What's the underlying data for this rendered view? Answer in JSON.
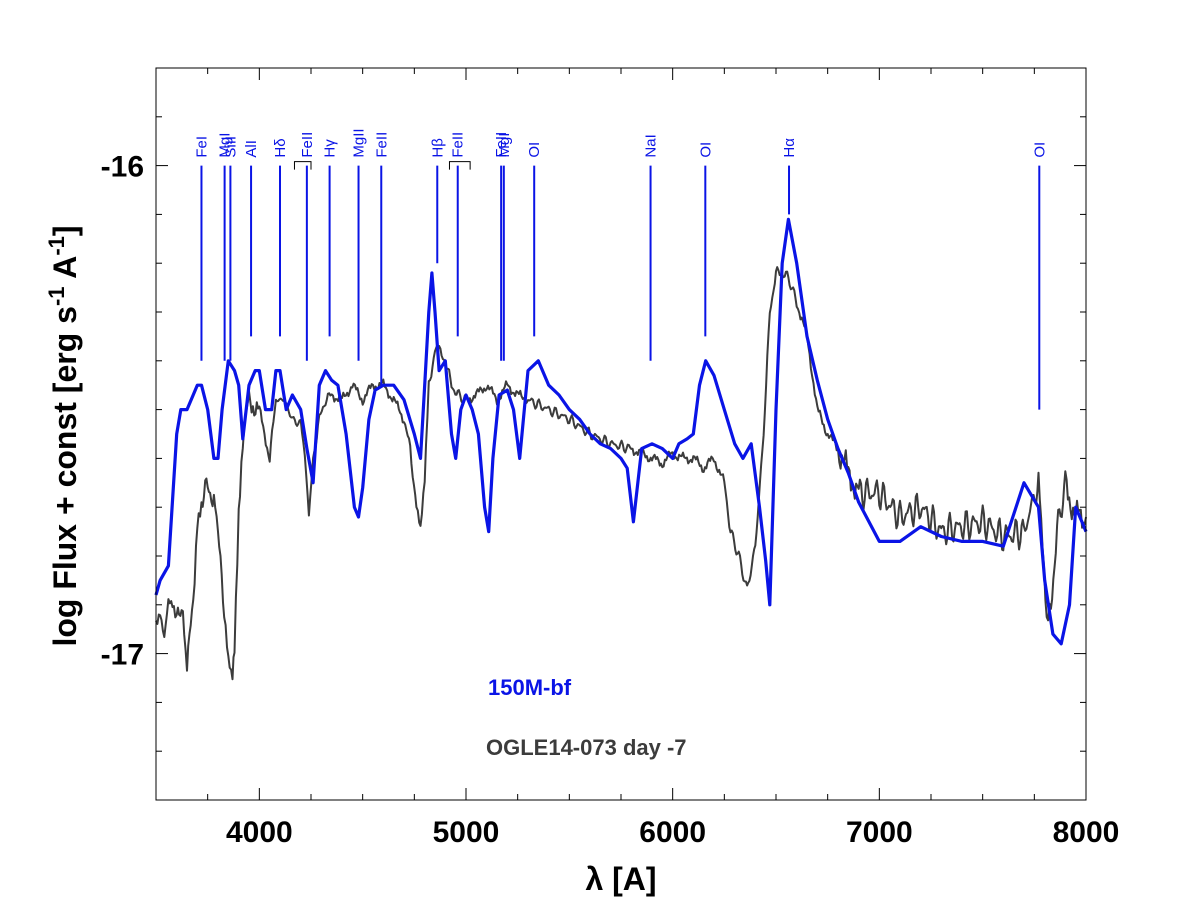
{
  "chart_data": {
    "type": "line",
    "title": "",
    "xlabel": "λ [A]",
    "ylabel_main": "log Flux + const [erg s",
    "ylabel_sup1": "-1",
    "ylabel_mid": " A",
    "ylabel_sup2": "-1",
    "ylabel_end": "]",
    "xlim": [
      3500,
      8000
    ],
    "ylim": [
      -17.3,
      -15.8
    ],
    "xticks": [
      4000,
      5000,
      6000,
      7000,
      8000
    ],
    "xtick_labels": [
      "4000",
      "5000",
      "6000",
      "7000",
      "8000"
    ],
    "yticks": [
      -16,
      -17
    ],
    "ytick_labels": [
      "-16",
      "-17"
    ],
    "colors": {
      "model": "#0a14e6",
      "observed": "#3c3c3c",
      "ids": "#0a14e6"
    },
    "legend": [
      {
        "name": "150M-bf",
        "color": "#0a14e6"
      },
      {
        "name": "OGLE14-073 day -7",
        "color": "#3c3c3c"
      }
    ],
    "line_ids": [
      {
        "label": "FeI",
        "x": 3720,
        "top": -16.0,
        "bottom": -16.4
      },
      {
        "label": "MgI",
        "x": 3832,
        "top": -16.0,
        "bottom": -16.4
      },
      {
        "label": "SiII",
        "x": 3860,
        "top": -16.0,
        "bottom": -16.4
      },
      {
        "label": "AlI",
        "x": 3960,
        "top": -16.0,
        "bottom": -16.35
      },
      {
        "label": "Hδ",
        "x": 4100,
        "top": -16.0,
        "bottom": -16.35
      },
      {
        "label": "FeII",
        "x": 4230,
        "top": -16.0,
        "bottom": -16.4,
        "bracket": [
          4170,
          4250
        ]
      },
      {
        "label": "Hγ",
        "x": 4340,
        "top": -16.0,
        "bottom": -16.35
      },
      {
        "label": "MgII",
        "x": 4480,
        "top": -16.0,
        "bottom": -16.4
      },
      {
        "label": "FeII",
        "x": 4590,
        "top": -16.0,
        "bottom": -16.45
      },
      {
        "label": "Hβ",
        "x": 4861,
        "top": -16.0,
        "bottom": -16.2
      },
      {
        "label": "FeII",
        "x": 4960,
        "top": -16.0,
        "bottom": -16.35,
        "bracket": [
          4920,
          5020
        ]
      },
      {
        "label": "FeII",
        "x": 5170,
        "top": -16.0,
        "bottom": -16.4
      },
      {
        "label": "MgI",
        "x": 5183,
        "top": -16.0,
        "bottom": -16.4
      },
      {
        "label": "OI",
        "x": 5330,
        "top": -16.0,
        "bottom": -16.35
      },
      {
        "label": "NaI",
        "x": 5893,
        "top": -16.0,
        "bottom": -16.4
      },
      {
        "label": "OI",
        "x": 6158,
        "top": -16.0,
        "bottom": -16.35
      },
      {
        "label": "Hα",
        "x": 6563,
        "top": -16.0,
        "bottom": -16.1
      },
      {
        "label": "OI",
        "x": 7774,
        "top": -16.0,
        "bottom": -16.5
      }
    ],
    "series": [
      {
        "name": "150M-bf",
        "x": [
          3500,
          3520,
          3560,
          3600,
          3620,
          3650,
          3680,
          3700,
          3720,
          3750,
          3780,
          3800,
          3820,
          3850,
          3880,
          3900,
          3920,
          3950,
          3980,
          4000,
          4030,
          4060,
          4080,
          4100,
          4130,
          4160,
          4200,
          4230,
          4260,
          4290,
          4320,
          4350,
          4380,
          4420,
          4460,
          4480,
          4500,
          4530,
          4560,
          4600,
          4650,
          4700,
          4750,
          4780,
          4800,
          4820,
          4835,
          4850,
          4870,
          4900,
          4930,
          4950,
          4975,
          5000,
          5030,
          5060,
          5090,
          5110,
          5130,
          5160,
          5200,
          5230,
          5260,
          5300,
          5350,
          5400,
          5450,
          5500,
          5550,
          5600,
          5650,
          5700,
          5750,
          5780,
          5810,
          5850,
          5900,
          5950,
          6000,
          6030,
          6070,
          6100,
          6130,
          6160,
          6200,
          6250,
          6300,
          6340,
          6380,
          6420,
          6450,
          6470,
          6500,
          6530,
          6560,
          6600,
          6650,
          6700,
          6750,
          6800,
          6850,
          6900,
          7000,
          7100,
          7200,
          7300,
          7400,
          7500,
          7600,
          7700,
          7770,
          7800,
          7840,
          7880,
          7920,
          7950,
          7980,
          8000
        ],
        "values": [
          -16.88,
          -16.85,
          -16.82,
          -16.55,
          -16.5,
          -16.5,
          -16.47,
          -16.45,
          -16.45,
          -16.5,
          -16.6,
          -16.6,
          -16.5,
          -16.4,
          -16.42,
          -16.45,
          -16.56,
          -16.45,
          -16.42,
          -16.42,
          -16.5,
          -16.5,
          -16.42,
          -16.42,
          -16.5,
          -16.47,
          -16.5,
          -16.58,
          -16.65,
          -16.45,
          -16.42,
          -16.44,
          -16.45,
          -16.55,
          -16.7,
          -16.72,
          -16.66,
          -16.52,
          -16.46,
          -16.45,
          -16.45,
          -16.48,
          -16.55,
          -16.6,
          -16.45,
          -16.3,
          -16.22,
          -16.3,
          -16.42,
          -16.4,
          -16.55,
          -16.6,
          -16.5,
          -16.47,
          -16.5,
          -16.55,
          -16.7,
          -16.75,
          -16.6,
          -16.47,
          -16.46,
          -16.5,
          -16.6,
          -16.42,
          -16.4,
          -16.45,
          -16.47,
          -16.5,
          -16.52,
          -16.55,
          -16.57,
          -16.58,
          -16.6,
          -16.62,
          -16.73,
          -16.58,
          -16.57,
          -16.58,
          -16.6,
          -16.57,
          -16.56,
          -16.55,
          -16.45,
          -16.4,
          -16.43,
          -16.5,
          -16.57,
          -16.6,
          -16.57,
          -16.7,
          -16.81,
          -16.9,
          -16.5,
          -16.2,
          -16.11,
          -16.2,
          -16.35,
          -16.44,
          -16.52,
          -16.58,
          -16.63,
          -16.69,
          -16.77,
          -16.77,
          -16.74,
          -16.76,
          -16.77,
          -16.77,
          -16.78,
          -16.65,
          -16.7,
          -16.85,
          -16.96,
          -16.98,
          -16.9,
          -16.7,
          -16.73,
          -16.75
        ]
      },
      {
        "name": "OGLE14-073 day -7",
        "x": [
          3500,
          3520,
          3540,
          3560,
          3580,
          3600,
          3630,
          3650,
          3680,
          3700,
          3720,
          3750,
          3780,
          3800,
          3830,
          3850,
          3870,
          3880,
          3900,
          3920,
          3950,
          4000,
          4050,
          4080,
          4120,
          4160,
          4200,
          4220,
          4240,
          4260,
          4290,
          4320,
          4350,
          4400,
          4450,
          4500,
          4550,
          4600,
          4650,
          4700,
          4730,
          4760,
          4780,
          4800,
          4820,
          4850,
          4870,
          4900,
          4930,
          4960,
          5000,
          5050,
          5100,
          5150,
          5200,
          5250,
          5300,
          5400,
          5500,
          5600,
          5700,
          5800,
          5850,
          5900,
          5950,
          6000,
          6050,
          6100,
          6150,
          6200,
          6250,
          6280,
          6320,
          6360,
          6400,
          6440,
          6470,
          6500,
          6530,
          6560,
          6600,
          6650,
          6700,
          6750,
          6800,
          6850,
          6900,
          7000,
          7100,
          7200,
          7300,
          7400,
          7500,
          7600,
          7700,
          7770,
          7790,
          7810,
          7830,
          7860,
          7900,
          7950,
          8000
        ],
        "values": [
          -16.93,
          -16.9,
          -16.95,
          -16.88,
          -16.9,
          -16.94,
          -16.9,
          -17.02,
          -16.9,
          -16.72,
          -16.68,
          -16.66,
          -16.68,
          -16.76,
          -16.9,
          -17.0,
          -17.05,
          -16.98,
          -16.7,
          -16.55,
          -16.48,
          -16.5,
          -16.6,
          -16.48,
          -16.48,
          -16.52,
          -16.53,
          -16.6,
          -16.72,
          -16.6,
          -16.52,
          -16.48,
          -16.47,
          -16.48,
          -16.45,
          -16.48,
          -16.45,
          -16.45,
          -16.48,
          -16.52,
          -16.58,
          -16.7,
          -16.75,
          -16.65,
          -16.45,
          -16.38,
          -16.38,
          -16.4,
          -16.45,
          -16.47,
          -16.48,
          -16.47,
          -16.45,
          -16.48,
          -16.45,
          -16.47,
          -16.48,
          -16.5,
          -16.52,
          -16.55,
          -16.57,
          -16.58,
          -16.59,
          -16.6,
          -16.61,
          -16.59,
          -16.6,
          -16.6,
          -16.62,
          -16.6,
          -16.65,
          -16.75,
          -16.8,
          -16.87,
          -16.78,
          -16.55,
          -16.3,
          -16.22,
          -16.22,
          -16.23,
          -16.28,
          -16.35,
          -16.5,
          -16.55,
          -16.58,
          -16.63,
          -16.67,
          -16.67,
          -16.72,
          -16.7,
          -16.75,
          -16.74,
          -16.73,
          -16.76,
          -16.75,
          -16.65,
          -16.8,
          -16.95,
          -16.9,
          -16.75,
          -16.65,
          -16.72,
          -16.72
        ]
      }
    ]
  }
}
